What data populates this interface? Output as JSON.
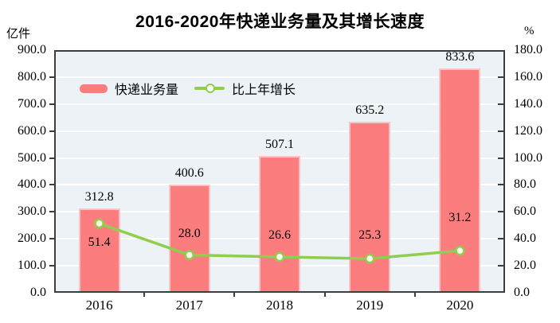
{
  "chart_data": {
    "type": "combo-bar-line",
    "title": "2016-2020年快递业务量及其增长速度",
    "categories": [
      "2016",
      "2017",
      "2018",
      "2019",
      "2020"
    ],
    "series": [
      {
        "name": "快递业务量",
        "type": "bar",
        "axis": "left",
        "values": [
          312.8,
          400.6,
          507.1,
          635.2,
          833.6
        ],
        "color": "#FC7D7D"
      },
      {
        "name": "比上年增长",
        "type": "line",
        "axis": "right",
        "values": [
          51.4,
          28.0,
          26.6,
          25.3,
          31.2
        ],
        "color": "#8FCE4E",
        "label_dy": [
          24,
          -27,
          -27,
          -29,
          -41
        ]
      }
    ],
    "left_axis": {
      "unit": "亿件",
      "min": 0,
      "max": 900,
      "step": 100,
      "tick_labels": [
        "0.0",
        "100.0",
        "200.0",
        "300.0",
        "400.0",
        "500.0",
        "600.0",
        "700.0",
        "800.0",
        "900.0"
      ]
    },
    "right_axis": {
      "unit": "%",
      "min": 0,
      "max": 180,
      "step": 20,
      "tick_labels": [
        "0.0",
        "20.0",
        "40.0",
        "60.0",
        "80.0",
        "100.0",
        "120.0",
        "140.0",
        "160.0",
        "180.0"
      ]
    },
    "grid": true,
    "legend_position": "inside-top-left",
    "colors": {
      "bar_fill": "#FC7D7D",
      "bar_edge": "#FBC3C3",
      "line": "#8FCE4E",
      "marker_fill": "#FDFFF2",
      "plot_bg": "#EDF2F7",
      "gridline": "#FFFFFF",
      "axis": "#3D3D3D",
      "text": "#000000"
    }
  }
}
